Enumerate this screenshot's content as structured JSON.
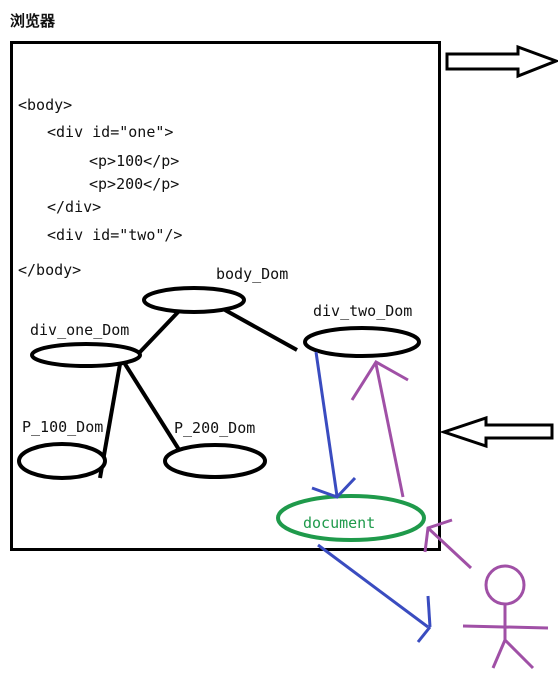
{
  "title": "浏览器",
  "code": {
    "body_open": "<body>",
    "div_one_open": "<div id=\"one\">",
    "p100": "<p>100</p>",
    "p200": "<p>200</p>",
    "div_close": "</div>",
    "div_two": "<div id=\"two\"/>",
    "body_close": "</body>"
  },
  "nodes": {
    "body": "body_Dom",
    "div_one": "div_one_Dom",
    "div_two": "div_two_Dom",
    "p100": "P_100_Dom",
    "p200": "P_200_Dom",
    "document": "document"
  },
  "colors": {
    "frame": "#000000",
    "document": "#1f9a4b",
    "blue_arrow": "#3a4cc0",
    "purple_arrow": "#a050a6"
  }
}
